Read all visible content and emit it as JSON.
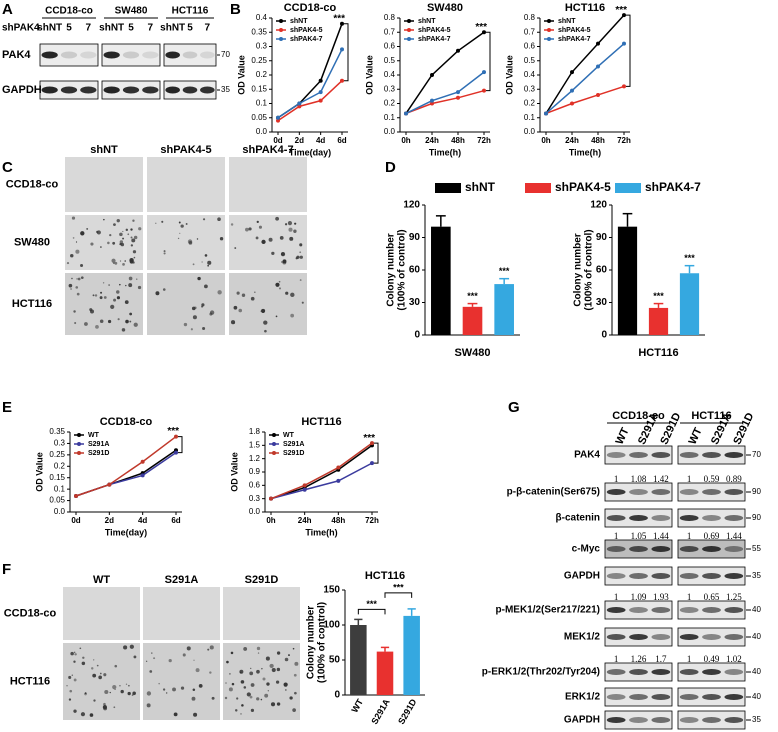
{
  "panel_labels": [
    "A",
    "B",
    "C",
    "D",
    "E",
    "F",
    "G"
  ],
  "blot_a": {
    "group_label": "shPAK4",
    "groups": [
      {
        "name": "CCD18-co",
        "lanes": [
          "shNT",
          "5",
          "7"
        ]
      },
      {
        "name": "SW480",
        "lanes": [
          "shNT",
          "5",
          "7"
        ]
      },
      {
        "name": "HCT116",
        "lanes": [
          "shNT",
          "5",
          "7"
        ]
      }
    ],
    "rows": [
      {
        "label": "PAK4",
        "marker": "70"
      },
      {
        "label": "GAPDH",
        "marker": "35"
      }
    ]
  },
  "colony_c": {
    "columns": [
      "shNT",
      "shPAK4-5",
      "shPAK4-7"
    ],
    "rows": [
      "CCD18-co",
      "SW480",
      "HCT116"
    ]
  },
  "colony_f": {
    "columns": [
      "WT",
      "S291A",
      "S291D"
    ],
    "rows": [
      "CCD18-co",
      "HCT116"
    ]
  },
  "blot_g": {
    "groups": [
      {
        "name": "CCD18-co",
        "lanes": [
          "WT",
          "S291A",
          "S291D"
        ]
      },
      {
        "name": "HCT116",
        "lanes": [
          "WT",
          "S291A",
          "S291D"
        ]
      }
    ],
    "rows": [
      {
        "label": "PAK4",
        "marker": "70"
      },
      {
        "label": "p-β-catenin(Ser675)",
        "marker": "90",
        "quant": [
          "1",
          "1.08",
          "1.42",
          "1",
          "0.59",
          "0.89"
        ]
      },
      {
        "label": "β-catenin",
        "marker": "90"
      },
      {
        "label": "c-Myc",
        "marker": "55",
        "quant": [
          "1",
          "1.05",
          "1.44",
          "1",
          "0.69",
          "1.44"
        ]
      },
      {
        "label": "GAPDH",
        "marker": "35"
      },
      {
        "label": "p-MEK1/2(Ser217/221)",
        "marker": "40",
        "quant": [
          "1",
          "1.09",
          "1.93",
          "1",
          "0.65",
          "1.25"
        ]
      },
      {
        "label": "MEK1/2",
        "marker": "40"
      },
      {
        "label": "p-ERK1/2(Thr202/Tyr204)",
        "marker": "40",
        "quant": [
          "1",
          "1.26",
          "1.7",
          "1",
          "0.49",
          "1.02"
        ]
      },
      {
        "label": "ERK1/2",
        "marker": "40"
      },
      {
        "label": "GAPDH",
        "marker": "35"
      }
    ]
  },
  "chart_data": [
    {
      "type": "line",
      "title": "CCD18-co",
      "xlabel": "Time(day)",
      "ylabel": "OD Value",
      "categories": [
        "0d",
        "2d",
        "4d",
        "6d"
      ],
      "series": [
        {
          "name": "shNT",
          "color": "#000000",
          "values": [
            0.05,
            0.1,
            0.18,
            0.38
          ]
        },
        {
          "name": "shPAK4-5",
          "color": "#e03127",
          "values": [
            0.04,
            0.09,
            0.11,
            0.18
          ]
        },
        {
          "name": "shPAK4-7",
          "color": "#2f6fb5",
          "values": [
            0.05,
            0.1,
            0.14,
            0.29
          ]
        }
      ],
      "ylim": [
        0,
        0.4
      ],
      "yticks": [
        {
          "value": 0,
          "label": "0.0"
        },
        0.05,
        0.1,
        0.15,
        0.2,
        0.25,
        0.3,
        0.35,
        0.4
      ],
      "legend": "upper left",
      "annotation": "***"
    },
    {
      "type": "line",
      "title": "SW480",
      "xlabel": "Time(h)",
      "ylabel": "OD Value",
      "categories": [
        "0h",
        "24h",
        "48h",
        "72h"
      ],
      "series": [
        {
          "name": "shNT",
          "color": "#000000",
          "values": [
            0.13,
            0.4,
            0.57,
            0.7
          ]
        },
        {
          "name": "shPAK4-5",
          "color": "#e03127",
          "values": [
            0.13,
            0.2,
            0.24,
            0.29
          ]
        },
        {
          "name": "shPAK4-7",
          "color": "#2f6fb5",
          "values": [
            0.13,
            0.22,
            0.28,
            0.42
          ]
        }
      ],
      "ylim": [
        0,
        0.8
      ],
      "yticks": [
        {
          "value": 0,
          "label": "0.0"
        },
        0.1,
        0.2,
        0.3,
        0.4,
        0.5,
        0.6,
        0.7,
        0.8
      ],
      "legend": "upper left",
      "annotation": "***"
    },
    {
      "type": "line",
      "title": "HCT116",
      "xlabel": "Time(h)",
      "ylabel": "OD Value",
      "categories": [
        "0h",
        "24h",
        "48h",
        "72h"
      ],
      "series": [
        {
          "name": "shNT",
          "color": "#000000",
          "values": [
            0.13,
            0.42,
            0.62,
            0.82
          ]
        },
        {
          "name": "shPAK4-5",
          "color": "#e03127",
          "values": [
            0.13,
            0.2,
            0.26,
            0.32
          ]
        },
        {
          "name": "shPAK4-7",
          "color": "#2f6fb5",
          "values": [
            0.13,
            0.29,
            0.46,
            0.62
          ]
        }
      ],
      "ylim": [
        0,
        0.8
      ],
      "yticks": [
        {
          "value": 0,
          "label": "0.0"
        },
        0.1,
        0.2,
        0.3,
        0.4,
        0.5,
        0.6,
        0.7,
        0.8
      ],
      "legend": "upper left",
      "annotation": "***"
    },
    {
      "type": "bar",
      "xlabel": "SW480",
      "ylabel": [
        "Colony number",
        "(100% of control)"
      ],
      "series": [
        {
          "name": "shNT",
          "color": "#000000",
          "values": [
            100
          ],
          "errors": [
            10
          ]
        },
        {
          "name": "shPAK4-5",
          "color": "#e8312f",
          "values": [
            26
          ],
          "errors": [
            3
          ],
          "annotation": "***"
        },
        {
          "name": "shPAK4-7",
          "color": "#35a8e0",
          "values": [
            47
          ],
          "errors": [
            5
          ],
          "annotation": "***"
        }
      ],
      "ylim": [
        0,
        120
      ],
      "yticks": [
        0,
        30,
        60,
        90,
        120
      ],
      "legend": "top"
    },
    {
      "type": "bar",
      "xlabel": "HCT116",
      "ylabel": [
        "Colony number",
        "(100% of control)"
      ],
      "series": [
        {
          "color": "#000000",
          "values": [
            100
          ],
          "errors": [
            12
          ]
        },
        {
          "color": "#e8312f",
          "values": [
            25
          ],
          "errors": [
            4
          ],
          "annotation": "***"
        },
        {
          "color": "#35a8e0",
          "values": [
            57
          ],
          "errors": [
            7
          ],
          "annotation": "***"
        }
      ],
      "ylim": [
        0,
        120
      ],
      "yticks": [
        0,
        30,
        60,
        90,
        120
      ]
    },
    {
      "type": "line",
      "title": "CCD18-co",
      "xlabel": "Time(day)",
      "ylabel": "OD Value",
      "categories": [
        "0d",
        "2d",
        "4d",
        "6d"
      ],
      "series": [
        {
          "name": "WT",
          "color": "#000000",
          "values": [
            0.07,
            0.12,
            0.17,
            0.27
          ]
        },
        {
          "name": "S291A",
          "color": "#3b3b9e",
          "values": [
            0.07,
            0.12,
            0.16,
            0.26
          ]
        },
        {
          "name": "S291D",
          "color": "#c0392b",
          "values": [
            0.07,
            0.12,
            0.22,
            0.33
          ]
        }
      ],
      "ylim": [
        0,
        0.35
      ],
      "yticks": [
        {
          "value": 0,
          "label": "0.0"
        },
        0.05,
        0.1,
        0.15,
        0.2,
        0.25,
        0.3,
        0.35
      ],
      "legend": "upper left",
      "annotation": "***"
    },
    {
      "type": "line",
      "title": "HCT116",
      "xlabel": "Time(h)",
      "ylabel": "OD Value",
      "categories": [
        "0h",
        "24h",
        "48h",
        "72h"
      ],
      "series": [
        {
          "name": "WT",
          "color": "#000000",
          "values": [
            0.3,
            0.55,
            0.95,
            1.5
          ]
        },
        {
          "name": "S291A",
          "color": "#3b3b9e",
          "values": [
            0.3,
            0.5,
            0.7,
            1.1
          ]
        },
        {
          "name": "S291D",
          "color": "#c0392b",
          "values": [
            0.3,
            0.6,
            1.0,
            1.55
          ]
        }
      ],
      "ylim": [
        0,
        1.8
      ],
      "yticks": [
        {
          "value": 0,
          "label": "0.0"
        },
        0.3,
        0.6,
        0.9,
        1.2,
        1.5,
        1.8
      ],
      "legend": "upper left",
      "annotation": "***"
    },
    {
      "type": "bar",
      "title": "HCT116",
      "ylabel": [
        "Colony number",
        "(100% of control)"
      ],
      "categories": [
        "WT",
        "S291A",
        "S291D"
      ],
      "values": [
        100,
        62,
        113
      ],
      "errors": [
        8,
        6,
        10
      ],
      "colors": [
        "#3d3d3d",
        "#e8312f",
        "#35a8e0"
      ],
      "ylim": [
        0,
        150
      ],
      "yticks": [
        0,
        50,
        100,
        150
      ],
      "annotations": [
        "***",
        "***"
      ]
    }
  ]
}
